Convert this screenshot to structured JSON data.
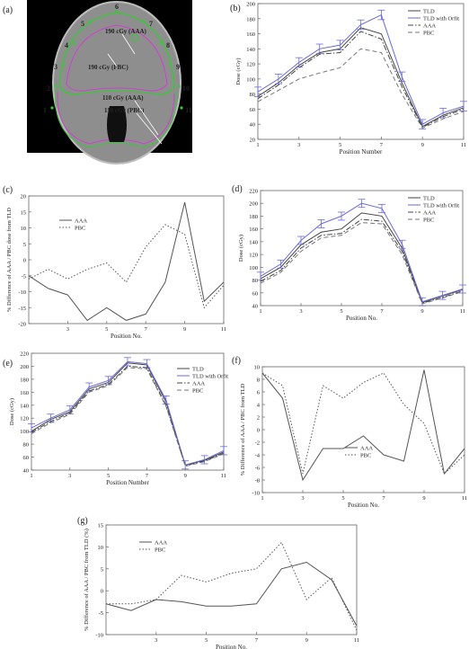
{
  "panel_a": {
    "label": "(a)",
    "points": [
      "1",
      "2",
      "3",
      "4",
      "5",
      "6",
      "7",
      "8",
      "9",
      "10",
      "11"
    ],
    "isodose": [
      "190 cGy (AAA)",
      "190 cGy (PBC)",
      "110 cGy (AAA)",
      "110 cGy (PBC)"
    ],
    "colors": {
      "green": "#38c838",
      "magenta": "#d040d0",
      "gray": "#9a9a9a"
    }
  },
  "chart_data": [
    {
      "id": "b",
      "label": "(b)",
      "type": "line",
      "xlabel": "Position Number",
      "ylabel": "Dose (cGy)",
      "xlim": [
        1,
        11
      ],
      "ylim": [
        20,
        200
      ],
      "xticks": [
        "1",
        "3",
        "5",
        "7",
        "9",
        "11"
      ],
      "yticks": [
        "20",
        "40",
        "60",
        "80",
        "100",
        "120",
        "140",
        "160",
        "180",
        "200"
      ],
      "legend_position": "top-right",
      "x": [
        1,
        2,
        3,
        4,
        5,
        6,
        7,
        8,
        9,
        10,
        11
      ],
      "series": [
        {
          "name": "TLD",
          "values": [
            77,
            95,
            118,
            135,
            140,
            168,
            160,
            95,
            37,
            52,
            62
          ],
          "style": "solid",
          "color": "#444444",
          "errorbars": false
        },
        {
          "name": "TLD with Orfit",
          "values": [
            83,
            100,
            122,
            140,
            145,
            172,
            185,
            103,
            40,
            55,
            64
          ],
          "style": "solid",
          "color": "#6a6ad8",
          "errorbars": true
        },
        {
          "name": "AAA",
          "values": [
            74,
            92,
            115,
            133,
            135,
            163,
            153,
            90,
            36,
            50,
            60
          ],
          "style": "dashdot",
          "color": "#444444",
          "errorbars": false
        },
        {
          "name": "PBC",
          "values": [
            70,
            85,
            100,
            108,
            115,
            140,
            135,
            80,
            35,
            47,
            57
          ],
          "style": "dashed",
          "color": "#777777",
          "errorbars": false
        }
      ]
    },
    {
      "id": "c",
      "label": "(c)",
      "type": "line",
      "xlabel": "Position No.",
      "ylabel": "% Difference of AAA / PBC dose from TLD",
      "xlim": [
        1,
        11
      ],
      "ylim": [
        -20,
        20
      ],
      "xticks": [
        "3",
        "5",
        "7",
        "9",
        "11"
      ],
      "yticks": [
        "-20",
        "-15",
        "-10",
        "-5",
        "0",
        "5",
        "10",
        "15",
        "20"
      ],
      "legend_position": "top-left",
      "x": [
        1,
        2,
        3,
        4,
        5,
        6,
        7,
        8,
        9,
        10,
        11
      ],
      "series": [
        {
          "name": "AAA",
          "values": [
            -5,
            -9,
            -11,
            -19,
            -15,
            -19,
            -17,
            -7,
            18,
            -13,
            -7
          ],
          "style": "solid",
          "color": "#555555"
        },
        {
          "name": "PBC",
          "values": [
            -6,
            -3,
            -6,
            -3,
            -1,
            -7,
            4,
            11,
            8,
            -15,
            -8
          ],
          "style": "dotted",
          "color": "#555555"
        }
      ]
    },
    {
      "id": "d",
      "label": "(d)",
      "type": "line",
      "xlabel": "Position No.",
      "ylabel": "Dose (cGy)",
      "xlim": [
        1,
        11
      ],
      "ylim": [
        40,
        220
      ],
      "xticks": [
        "1",
        "3",
        "5",
        "7",
        "9",
        "11"
      ],
      "yticks": [
        "40",
        "60",
        "80",
        "100",
        "120",
        "140",
        "160",
        "180",
        "200",
        "220"
      ],
      "legend_position": "top-right",
      "x": [
        1,
        2,
        3,
        4,
        5,
        6,
        7,
        8,
        9,
        10,
        11
      ],
      "series": [
        {
          "name": "TLD",
          "values": [
            82,
            100,
            135,
            155,
            160,
            185,
            180,
            130,
            45,
            55,
            65
          ],
          "style": "solid",
          "color": "#444444",
          "errorbars": false
        },
        {
          "name": "TLD with Orfit",
          "values": [
            86,
            105,
            142,
            168,
            180,
            200,
            192,
            136,
            46,
            56,
            66
          ],
          "style": "solid",
          "color": "#6a6ad8",
          "errorbars": true
        },
        {
          "name": "AAA",
          "values": [
            78,
            95,
            130,
            150,
            153,
            175,
            172,
            125,
            44,
            53,
            63
          ],
          "style": "dashdot",
          "color": "#444444",
          "errorbars": false
        },
        {
          "name": "PBC",
          "values": [
            75,
            92,
            125,
            146,
            150,
            170,
            168,
            120,
            43,
            52,
            62
          ],
          "style": "dashed",
          "color": "#777777",
          "errorbars": false
        }
      ]
    },
    {
      "id": "e",
      "label": "(e)",
      "type": "line",
      "xlabel": "Position Number",
      "ylabel": "Dose (cGy)",
      "xlim": [
        1,
        11
      ],
      "ylim": [
        40,
        220
      ],
      "xticks": [
        "1",
        "3",
        "5",
        "7",
        "9",
        "11"
      ],
      "yticks": [
        "40",
        "60",
        "80",
        "100",
        "120",
        "140",
        "160",
        "180",
        "200",
        "220"
      ],
      "legend_position": "top-right",
      "x": [
        1,
        2,
        3,
        4,
        5,
        6,
        7,
        8,
        9,
        10,
        11
      ],
      "series": [
        {
          "name": "TLD",
          "values": [
            100,
            118,
            130,
            165,
            175,
            205,
            202,
            145,
            48,
            55,
            68
          ],
          "style": "solid",
          "color": "#444444",
          "errorbars": false
        },
        {
          "name": "TLD with Orfit",
          "values": [
            105,
            120,
            133,
            168,
            178,
            207,
            204,
            148,
            48,
            56,
            70
          ],
          "style": "solid",
          "color": "#6a6ad8",
          "errorbars": true
        },
        {
          "name": "AAA",
          "values": [
            98,
            115,
            128,
            162,
            172,
            200,
            198,
            140,
            47,
            54,
            66
          ],
          "style": "dashdot",
          "color": "#444444",
          "errorbars": false
        },
        {
          "name": "PBC",
          "values": [
            96,
            113,
            126,
            160,
            170,
            198,
            196,
            138,
            46,
            53,
            65
          ],
          "style": "dashed",
          "color": "#777777",
          "errorbars": false
        }
      ]
    },
    {
      "id": "f",
      "label": "(f)",
      "type": "line",
      "xlabel": "Position No.",
      "ylabel": "% Difference of AAA / PBC from TLD",
      "xlim": [
        1,
        11
      ],
      "ylim": [
        -10,
        10
      ],
      "xticks": [
        "1",
        "3",
        "5",
        "7",
        "9",
        "11"
      ],
      "yticks": [
        "-10",
        "-8",
        "-6",
        "-4",
        "-2",
        "0",
        "2",
        "4",
        "6",
        "8",
        "10"
      ],
      "legend_position": "center",
      "x": [
        1,
        2,
        3,
        4,
        5,
        6,
        7,
        8,
        9,
        10,
        11
      ],
      "series": [
        {
          "name": "AAA",
          "values": [
            9,
            5,
            -8,
            -3,
            -3,
            -1,
            -4,
            -5,
            9.5,
            -7,
            -3
          ],
          "style": "solid",
          "color": "#555555"
        },
        {
          "name": "PBC",
          "values": [
            9,
            7,
            -7,
            7,
            5,
            7.5,
            9,
            4,
            1,
            -7,
            -4
          ],
          "style": "dotted",
          "color": "#555555"
        }
      ]
    },
    {
      "id": "g",
      "label": "(g)",
      "type": "line",
      "xlabel": "Position No.",
      "ylabel": "% Difference of AAA / PBC from TLD (%)",
      "xlim": [
        1,
        11
      ],
      "ylim": [
        -10,
        15
      ],
      "xticks": [
        "3",
        "5",
        "7",
        "9",
        "11"
      ],
      "yticks": [
        "-10",
        "-5",
        "0",
        "5",
        "10",
        "15"
      ],
      "legend_position": "top-left",
      "x": [
        1,
        2,
        3,
        4,
        5,
        6,
        7,
        8,
        9,
        10,
        11
      ],
      "series": [
        {
          "name": "AAA",
          "values": [
            -3,
            -4.5,
            -2,
            -2.5,
            -3.5,
            -3.5,
            -3,
            5,
            6.5,
            2.5,
            -8
          ],
          "style": "solid",
          "color": "#555555"
        },
        {
          "name": "PBC",
          "values": [
            -3,
            -3,
            -2,
            3.5,
            2,
            4,
            5,
            11,
            -2,
            3,
            -9
          ],
          "style": "dotted",
          "color": "#555555"
        }
      ]
    }
  ]
}
